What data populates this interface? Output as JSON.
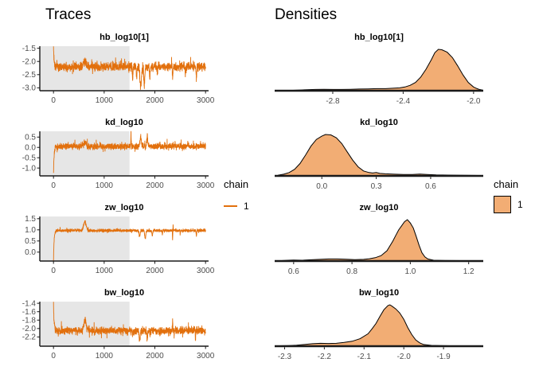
{
  "headings": {
    "traces": "Traces",
    "densities": "Densities"
  },
  "legend_trace": {
    "title": "chain",
    "items": [
      {
        "label": "1"
      }
    ]
  },
  "legend_density": {
    "title": "chain",
    "items": [
      {
        "label": "1"
      }
    ]
  },
  "style": {
    "trace_color": "#E2700D",
    "density_fill": "#F2AD74",
    "density_stroke": "#000000",
    "warmup_fill": "#E6E6E6",
    "axis_color": "#1A1A1A",
    "tick_label_color": "#4D4D4D",
    "title_color": "#000000"
  },
  "chart_data": [
    {
      "kind": "trace",
      "type": "line",
      "title": "hb_log10[1]",
      "xlabel": "",
      "ylabel": "",
      "grid": false,
      "xlim": [
        -270,
        3060
      ],
      "ylim": [
        -3.11,
        -1.42
      ],
      "xticks": [
        {
          "v": 0,
          "label": "0"
        },
        {
          "v": 1000,
          "label": "1000"
        },
        {
          "v": 2000,
          "label": "2000"
        },
        {
          "v": 3000,
          "label": "3000"
        }
      ],
      "yticks": [
        {
          "v": -1.5,
          "label": "-1.5"
        },
        {
          "v": -2.0,
          "label": "-2.0"
        },
        {
          "v": -2.5,
          "label": "-2.5"
        },
        {
          "v": -3.0,
          "label": "-3.0"
        }
      ],
      "n_iterations": 3000,
      "warmup_end": 1500,
      "series": [
        {
          "name": "1",
          "baseline": -2.2,
          "noise_sd": 0.1,
          "start_value": -1.45,
          "features": [
            {
              "at": 620,
              "amp": 0.22,
              "width": 40
            },
            {
              "at": 1560,
              "amp": -0.5,
              "width": 8
            },
            {
              "at": 1640,
              "amp": -0.55,
              "width": 10
            },
            {
              "at": 1720,
              "amp": -0.85,
              "width": 22
            },
            {
              "at": 1790,
              "amp": -0.8,
              "width": 14
            },
            {
              "at": 1900,
              "amp": -0.55,
              "width": 8
            },
            {
              "at": 2050,
              "amp": -0.4,
              "width": 6
            },
            {
              "at": 2350,
              "amp": -0.6,
              "width": 6
            },
            {
              "at": 2600,
              "amp": -0.35,
              "width": 5
            },
            {
              "at": 2820,
              "amp": -0.6,
              "width": 8
            }
          ]
        }
      ]
    },
    {
      "kind": "density",
      "type": "area",
      "title": "hb_log10[1]",
      "xlabel": "",
      "ylabel": "",
      "grid": false,
      "xlim": [
        -3.13,
        -1.945
      ],
      "xticks": [
        {
          "v": -2.8,
          "label": "-2.8"
        },
        {
          "v": -2.4,
          "label": "-2.4"
        },
        {
          "v": -2.0,
          "label": "-2.0"
        }
      ],
      "points": [
        [
          -3.05,
          0.005
        ],
        [
          -3.0,
          0.015
        ],
        [
          -2.95,
          0.025
        ],
        [
          -2.9,
          0.03
        ],
        [
          -2.85,
          0.035
        ],
        [
          -2.8,
          0.03
        ],
        [
          -2.75,
          0.03
        ],
        [
          -2.7,
          0.035
        ],
        [
          -2.65,
          0.04
        ],
        [
          -2.6,
          0.045
        ],
        [
          -2.55,
          0.05
        ],
        [
          -2.5,
          0.05
        ],
        [
          -2.46,
          0.06
        ],
        [
          -2.42,
          0.07
        ],
        [
          -2.39,
          0.09
        ],
        [
          -2.36,
          0.13
        ],
        [
          -2.33,
          0.2
        ],
        [
          -2.3,
          0.33
        ],
        [
          -2.27,
          0.52
        ],
        [
          -2.24,
          0.75
        ],
        [
          -2.22,
          0.92
        ],
        [
          -2.2,
          1.0
        ],
        [
          -2.18,
          0.99
        ],
        [
          -2.15,
          0.93
        ],
        [
          -2.12,
          0.8
        ],
        [
          -2.09,
          0.6
        ],
        [
          -2.06,
          0.38
        ],
        [
          -2.03,
          0.2
        ],
        [
          -2.0,
          0.09
        ],
        [
          -1.98,
          0.05
        ],
        [
          -1.97,
          0.035
        ],
        [
          -1.95,
          0.015
        ]
      ]
    },
    {
      "kind": "trace",
      "type": "line",
      "title": "kd_log10",
      "xlabel": "",
      "ylabel": "",
      "grid": false,
      "xlim": [
        -270,
        3060
      ],
      "ylim": [
        -1.38,
        0.78
      ],
      "xticks": [
        {
          "v": 0,
          "label": "0"
        },
        {
          "v": 1000,
          "label": "1000"
        },
        {
          "v": 2000,
          "label": "2000"
        },
        {
          "v": 3000,
          "label": "3000"
        }
      ],
      "yticks": [
        {
          "v": 0.5,
          "label": "0.5"
        },
        {
          "v": 0.0,
          "label": "0.0"
        },
        {
          "v": -0.5,
          "label": "-0.5"
        },
        {
          "v": -1.0,
          "label": "-1.0"
        }
      ],
      "n_iterations": 3000,
      "warmup_end": 1500,
      "series": [
        {
          "name": "1",
          "baseline": 0.05,
          "noise_sd": 0.09,
          "start_value": -1.3,
          "features": [
            {
              "at": 620,
              "amp": 0.18,
              "width": 40
            },
            {
              "at": 1530,
              "amp": 0.8,
              "width": 6
            },
            {
              "at": 1720,
              "amp": 0.55,
              "width": 18
            },
            {
              "at": 1850,
              "amp": 0.55,
              "width": 14
            },
            {
              "at": 2100,
              "amp": 0.25,
              "width": 5
            },
            {
              "at": 2400,
              "amp": 0.2,
              "width": 5
            },
            {
              "at": 2650,
              "amp": 0.3,
              "width": 6
            },
            {
              "at": 2900,
              "amp": 0.25,
              "width": 5
            }
          ]
        }
      ]
    },
    {
      "kind": "density",
      "type": "area",
      "title": "kd_log10",
      "xlabel": "",
      "ylabel": "",
      "grid": false,
      "xlim": [
        -0.26,
        0.89
      ],
      "xticks": [
        {
          "v": 0.0,
          "label": "0.0"
        },
        {
          "v": 0.3,
          "label": "0.3"
        },
        {
          "v": 0.6,
          "label": "0.6"
        }
      ],
      "points": [
        [
          -0.24,
          0.02
        ],
        [
          -0.21,
          0.04
        ],
        [
          -0.18,
          0.08
        ],
        [
          -0.15,
          0.16
        ],
        [
          -0.12,
          0.3
        ],
        [
          -0.09,
          0.5
        ],
        [
          -0.06,
          0.72
        ],
        [
          -0.03,
          0.88
        ],
        [
          0.0,
          0.96
        ],
        [
          0.02,
          1.0
        ],
        [
          0.05,
          0.99
        ],
        [
          0.08,
          0.92
        ],
        [
          0.11,
          0.78
        ],
        [
          0.14,
          0.58
        ],
        [
          0.17,
          0.38
        ],
        [
          0.2,
          0.22
        ],
        [
          0.23,
          0.12
        ],
        [
          0.26,
          0.08
        ],
        [
          0.28,
          0.07
        ],
        [
          0.3,
          0.08
        ],
        [
          0.32,
          0.06
        ],
        [
          0.35,
          0.05
        ],
        [
          0.4,
          0.04
        ],
        [
          0.45,
          0.035
        ],
        [
          0.5,
          0.035
        ],
        [
          0.54,
          0.045
        ],
        [
          0.58,
          0.035
        ],
        [
          0.63,
          0.025
        ],
        [
          0.7,
          0.02
        ],
        [
          0.78,
          0.015
        ],
        [
          0.86,
          0.01
        ]
      ]
    },
    {
      "kind": "trace",
      "type": "line",
      "title": "zw_log10",
      "xlabel": "",
      "ylabel": "",
      "grid": false,
      "xlim": [
        -270,
        3060
      ],
      "ylim": [
        -0.4,
        1.6
      ],
      "xticks": [
        {
          "v": 0,
          "label": "0"
        },
        {
          "v": 1000,
          "label": "1000"
        },
        {
          "v": 2000,
          "label": "2000"
        },
        {
          "v": 3000,
          "label": "3000"
        }
      ],
      "yticks": [
        {
          "v": 1.5,
          "label": "1.5"
        },
        {
          "v": 1.0,
          "label": "1.0"
        },
        {
          "v": 0.5,
          "label": "0.5"
        },
        {
          "v": 0.0,
          "label": "0.0"
        }
      ],
      "n_iterations": 3000,
      "warmup_end": 1500,
      "series": [
        {
          "name": "1",
          "baseline": 0.97,
          "noise_sd": 0.04,
          "start_value": -0.38,
          "features": [
            {
              "at": 620,
              "amp": 0.45,
              "width": 35
            },
            {
              "at": 1700,
              "amp": -0.3,
              "width": 14
            },
            {
              "at": 1810,
              "amp": -0.42,
              "width": 16
            },
            {
              "at": 1950,
              "amp": -0.3,
              "width": 10
            },
            {
              "at": 2150,
              "amp": -0.2,
              "width": 6
            },
            {
              "at": 2360,
              "amp": 0.35,
              "width": 3
            },
            {
              "at": 2350,
              "amp": -0.55,
              "width": 4
            },
            {
              "at": 2500,
              "amp": -0.2,
              "width": 5
            },
            {
              "at": 2820,
              "amp": -0.28,
              "width": 8
            }
          ]
        }
      ]
    },
    {
      "kind": "density",
      "type": "area",
      "title": "zw_log10",
      "xlabel": "",
      "ylabel": "",
      "grid": false,
      "xlim": [
        0.535,
        1.25
      ],
      "xticks": [
        {
          "v": 0.6,
          "label": "0.6"
        },
        {
          "v": 0.8,
          "label": "0.8"
        },
        {
          "v": 1.0,
          "label": "1.0"
        },
        {
          "v": 1.2,
          "label": "1.2"
        }
      ],
      "points": [
        [
          0.56,
          0.01
        ],
        [
          0.58,
          0.02
        ],
        [
          0.6,
          0.025
        ],
        [
          0.63,
          0.02
        ],
        [
          0.66,
          0.03
        ],
        [
          0.69,
          0.04
        ],
        [
          0.72,
          0.05
        ],
        [
          0.75,
          0.05
        ],
        [
          0.78,
          0.045
        ],
        [
          0.81,
          0.035
        ],
        [
          0.84,
          0.04
        ],
        [
          0.86,
          0.055
        ],
        [
          0.88,
          0.08
        ],
        [
          0.9,
          0.13
        ],
        [
          0.92,
          0.25
        ],
        [
          0.94,
          0.48
        ],
        [
          0.95,
          0.62
        ],
        [
          0.96,
          0.75
        ],
        [
          0.97,
          0.85
        ],
        [
          0.98,
          0.95
        ],
        [
          0.99,
          1.0
        ],
        [
          1.0,
          0.92
        ],
        [
          1.01,
          0.8
        ],
        [
          1.02,
          0.6
        ],
        [
          1.03,
          0.38
        ],
        [
          1.04,
          0.2
        ],
        [
          1.05,
          0.1
        ],
        [
          1.06,
          0.05
        ],
        [
          1.08,
          0.02
        ],
        [
          1.12,
          0.012
        ],
        [
          1.17,
          0.01
        ],
        [
          1.22,
          0.008
        ]
      ]
    },
    {
      "kind": "trace",
      "type": "line",
      "title": "bw_log10",
      "xlabel": "",
      "ylabel": "",
      "grid": false,
      "xlim": [
        -270,
        3060
      ],
      "ylim": [
        -2.42,
        -1.36
      ],
      "xticks": [
        {
          "v": 0,
          "label": "0"
        },
        {
          "v": 1000,
          "label": "1000"
        },
        {
          "v": 2000,
          "label": "2000"
        },
        {
          "v": 3000,
          "label": "3000"
        }
      ],
      "yticks": [
        {
          "v": -1.4,
          "label": "-1.4"
        },
        {
          "v": -1.6,
          "label": "-1.6"
        },
        {
          "v": -1.8,
          "label": "-1.8"
        },
        {
          "v": -2.0,
          "label": "-2.0"
        },
        {
          "v": -2.2,
          "label": "-2.2"
        }
      ],
      "n_iterations": 3000,
      "warmup_end": 1500,
      "series": [
        {
          "name": "1",
          "baseline": -2.05,
          "noise_sd": 0.055,
          "start_value": -1.42,
          "features": [
            {
              "at": 620,
              "amp": 0.32,
              "width": 30
            },
            {
              "at": 1560,
              "amp": -0.2,
              "width": 6
            },
            {
              "at": 1700,
              "amp": -0.25,
              "width": 12
            },
            {
              "at": 1850,
              "amp": -0.22,
              "width": 10
            },
            {
              "at": 2100,
              "amp": -0.15,
              "width": 5
            },
            {
              "at": 2350,
              "amp": 0.3,
              "width": 4
            },
            {
              "at": 2380,
              "amp": -0.2,
              "width": 4
            },
            {
              "at": 2800,
              "amp": -0.25,
              "width": 6
            }
          ]
        }
      ]
    },
    {
      "kind": "density",
      "type": "area",
      "title": "bw_log10",
      "xlabel": "",
      "ylabel": "",
      "grid": false,
      "xlim": [
        -2.325,
        -1.8
      ],
      "xticks": [
        {
          "v": -2.3,
          "label": "-2.3"
        },
        {
          "v": -2.2,
          "label": "-2.2"
        },
        {
          "v": -2.1,
          "label": "-2.1"
        },
        {
          "v": -2.0,
          "label": "-2.0"
        },
        {
          "v": -1.9,
          "label": "-1.9"
        }
      ],
      "points": [
        [
          -2.31,
          0.01
        ],
        [
          -2.29,
          0.015
        ],
        [
          -2.27,
          0.025
        ],
        [
          -2.25,
          0.04
        ],
        [
          -2.23,
          0.06
        ],
        [
          -2.21,
          0.07
        ],
        [
          -2.19,
          0.065
        ],
        [
          -2.17,
          0.07
        ],
        [
          -2.15,
          0.09
        ],
        [
          -2.13,
          0.12
        ],
        [
          -2.11,
          0.18
        ],
        [
          -2.09,
          0.3
        ],
        [
          -2.08,
          0.42
        ],
        [
          -2.07,
          0.55
        ],
        [
          -2.06,
          0.72
        ],
        [
          -2.05,
          0.88
        ],
        [
          -2.04,
          0.98
        ],
        [
          -2.035,
          1.0
        ],
        [
          -2.03,
          0.97
        ],
        [
          -2.02,
          0.9
        ],
        [
          -2.01,
          0.8
        ],
        [
          -2.0,
          0.65
        ],
        [
          -1.99,
          0.45
        ],
        [
          -1.98,
          0.28
        ],
        [
          -1.97,
          0.15
        ],
        [
          -1.96,
          0.08
        ],
        [
          -1.95,
          0.04
        ],
        [
          -1.93,
          0.02
        ],
        [
          -1.9,
          0.012
        ],
        [
          -1.87,
          0.008
        ],
        [
          -1.85,
          0.006
        ]
      ]
    }
  ]
}
